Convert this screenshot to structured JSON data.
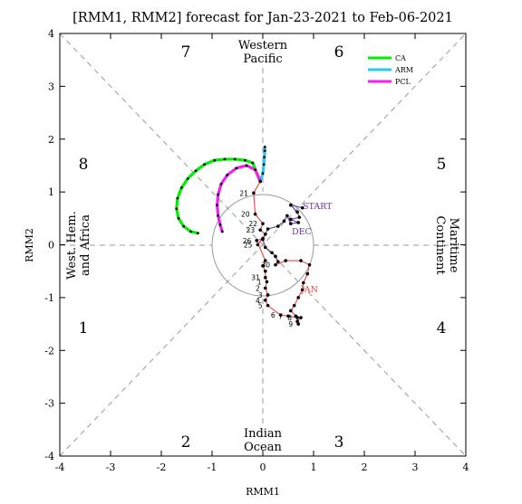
{
  "chart_data": {
    "type": "line",
    "title": "[RMM1, RMM2] forecast for Jan-23-2021 to Feb-06-2021",
    "xlabel": "RMM1",
    "ylabel": "RMM2",
    "xlim": [
      -4,
      4
    ],
    "ylim": [
      -4,
      4
    ],
    "x_ticks": [
      "-4",
      "-3",
      "-2",
      "-1",
      "0",
      "1",
      "2",
      "3",
      "4"
    ],
    "y_ticks": [
      "-4",
      "-3",
      "-2",
      "-1",
      "0",
      "1",
      "2",
      "3",
      "4"
    ],
    "phases": [
      "1",
      "2",
      "3",
      "4",
      "5",
      "6",
      "7",
      "8"
    ],
    "regions": [
      [
        "Western",
        "Pacific"
      ],
      [
        "Indian",
        "Ocean"
      ],
      [
        "West. Hem.",
        "and Africa"
      ],
      [
        "Maritime",
        "Continent"
      ]
    ],
    "unit_circle_radius": 1,
    "grid": false,
    "legend_position": "top-right",
    "legend": [
      {
        "name": "CA",
        "color": "#00ee00"
      },
      {
        "name": "ARM",
        "color": "#22ccee"
      },
      {
        "name": "PCL",
        "color": "#ee22ee"
      }
    ],
    "observed_color": "#000000",
    "observed_line_colors": {
      "DEC": "#6633aa",
      "JAN": "#ee4444"
    },
    "month_labels": [
      {
        "text": "START",
        "color": "#6633aa"
      },
      {
        "text": "DEC",
        "color": "#6633aa"
      },
      {
        "text": "JAN",
        "color": "#ee4444"
      }
    ],
    "series": [
      {
        "name": "observed",
        "points": [
          {
            "label": "",
            "x": 0.78,
            "y": 0.7
          },
          {
            "label": "",
            "x": 0.55,
            "y": 0.75
          },
          {
            "label": "",
            "x": 0.68,
            "y": 0.62
          },
          {
            "label": "",
            "x": 0.72,
            "y": 0.52
          },
          {
            "label": "",
            "x": 0.55,
            "y": 0.48
          },
          {
            "label": "",
            "x": 0.7,
            "y": 0.42
          },
          {
            "label": "",
            "x": 0.55,
            "y": 0.4
          },
          {
            "label": "",
            "x": 0.48,
            "y": 0.55
          },
          {
            "label": "",
            "x": 0.42,
            "y": 0.45
          },
          {
            "label": "",
            "x": 0.3,
            "y": 0.35
          },
          {
            "label": "",
            "x": 0.1,
            "y": 0.3
          },
          {
            "label": "",
            "x": 0.0,
            "y": 0.1
          },
          {
            "label": "",
            "x": 0.05,
            "y": -0.05
          },
          {
            "label": "",
            "x": 0.18,
            "y": -0.15
          },
          {
            "label": "",
            "x": 0.25,
            "y": -0.22
          },
          {
            "label": "",
            "x": 0.3,
            "y": -0.32
          },
          {
            "label": "30",
            "x": 0.25,
            "y": -0.38
          },
          {
            "label": "",
            "x": 0.45,
            "y": -0.3
          },
          {
            "label": "",
            "x": 0.75,
            "y": -0.3
          },
          {
            "label": "",
            "x": 0.92,
            "y": -0.38
          },
          {
            "label": "",
            "x": 0.88,
            "y": -0.55
          },
          {
            "label": "",
            "x": 0.8,
            "y": -0.72
          },
          {
            "label": "",
            "x": 0.78,
            "y": -0.85
          },
          {
            "label": "",
            "x": 0.7,
            "y": -1.0
          },
          {
            "label": "",
            "x": 0.62,
            "y": -1.15
          },
          {
            "label": "",
            "x": 0.55,
            "y": -1.25
          },
          {
            "label": "",
            "x": 0.65,
            "y": -1.35
          },
          {
            "label": "",
            "x": 0.75,
            "y": -1.38
          },
          {
            "label": "",
            "x": 0.68,
            "y": -1.45
          },
          {
            "label": "9",
            "x": 0.7,
            "y": -1.5
          },
          {
            "label": "8",
            "x": 0.68,
            "y": -1.38
          },
          {
            "label": "7",
            "x": 0.5,
            "y": -1.35
          },
          {
            "label": "6",
            "x": 0.35,
            "y": -1.33
          },
          {
            "label": "5",
            "x": 0.1,
            "y": -1.15
          },
          {
            "label": "4",
            "x": 0.05,
            "y": -1.05
          },
          {
            "label": "3",
            "x": 0.1,
            "y": -0.95
          },
          {
            "label": "2",
            "x": 0.05,
            "y": -0.82
          },
          {
            "label": "1",
            "x": 0.08,
            "y": -0.7
          },
          {
            "label": "31",
            "x": 0.05,
            "y": -0.62
          },
          {
            "label": "",
            "x": 0.05,
            "y": -0.5
          },
          {
            "label": "",
            "x": 0.0,
            "y": -0.4
          },
          {
            "label": "",
            "x": 0.05,
            "y": -0.3
          },
          {
            "label": "26",
            "x": -0.12,
            "y": 0.08
          },
          {
            "label": "",
            "x": 0.0,
            "y": 0.12
          },
          {
            "label": "25",
            "x": -0.1,
            "y": 0.0
          },
          {
            "label": "",
            "x": 0.05,
            "y": 0.2
          },
          {
            "label": "23",
            "x": -0.05,
            "y": 0.28
          },
          {
            "label": "22",
            "x": 0.0,
            "y": 0.4
          },
          {
            "label": "20",
            "x": -0.15,
            "y": 0.58
          },
          {
            "label": "21",
            "x": -0.18,
            "y": 0.98
          },
          {
            "label": "",
            "x": -0.05,
            "y": 1.2
          }
        ]
      },
      {
        "name": "CA",
        "points": [
          {
            "x": -0.05,
            "y": 1.2
          },
          {
            "x": -0.2,
            "y": 1.55
          },
          {
            "x": -0.35,
            "y": 1.6
          },
          {
            "x": -0.55,
            "y": 1.62
          },
          {
            "x": -0.75,
            "y": 1.62
          },
          {
            "x": -0.95,
            "y": 1.6
          },
          {
            "x": -1.15,
            "y": 1.52
          },
          {
            "x": -1.32,
            "y": 1.4
          },
          {
            "x": -1.48,
            "y": 1.25
          },
          {
            "x": -1.6,
            "y": 1.08
          },
          {
            "x": -1.68,
            "y": 0.88
          },
          {
            "x": -1.7,
            "y": 0.68
          },
          {
            "x": -1.66,
            "y": 0.5
          },
          {
            "x": -1.56,
            "y": 0.35
          },
          {
            "x": -1.42,
            "y": 0.25
          },
          {
            "x": -1.28,
            "y": 0.22
          }
        ]
      },
      {
        "name": "ARM",
        "points": [
          {
            "x": -0.05,
            "y": 1.2
          },
          {
            "x": 0.0,
            "y": 1.35
          },
          {
            "x": 0.02,
            "y": 1.52
          },
          {
            "x": 0.03,
            "y": 1.66
          },
          {
            "x": 0.04,
            "y": 1.78
          },
          {
            "x": 0.04,
            "y": 1.85
          }
        ]
      },
      {
        "name": "PCL",
        "points": [
          {
            "x": -0.05,
            "y": 1.2
          },
          {
            "x": -0.15,
            "y": 1.42
          },
          {
            "x": -0.32,
            "y": 1.5
          },
          {
            "x": -0.52,
            "y": 1.45
          },
          {
            "x": -0.7,
            "y": 1.32
          },
          {
            "x": -0.82,
            "y": 1.15
          },
          {
            "x": -0.88,
            "y": 0.95
          },
          {
            "x": -0.9,
            "y": 0.75
          },
          {
            "x": -0.88,
            "y": 0.55
          },
          {
            "x": -0.84,
            "y": 0.38
          },
          {
            "x": -0.8,
            "y": 0.25
          }
        ]
      }
    ]
  }
}
